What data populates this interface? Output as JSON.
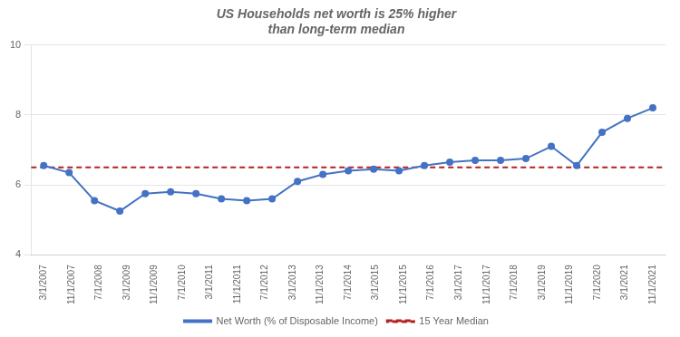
{
  "chart_data": {
    "type": "line",
    "title": [
      "US Households net worth is 25% higher",
      "than long-term median"
    ],
    "x": [
      0,
      1,
      2,
      3,
      4,
      5,
      6,
      7,
      8,
      9,
      10,
      11,
      12,
      13,
      14,
      15,
      16,
      17,
      18,
      19,
      20,
      21,
      22,
      23,
      24
    ],
    "series": [
      {
        "name": "Net Worth (% of Disposable Income)",
        "color": "#4472C4",
        "marker": "o",
        "line_style": "solid",
        "values": [
          6.55,
          6.35,
          5.55,
          5.25,
          5.75,
          5.8,
          5.75,
          5.6,
          5.55,
          5.6,
          6.1,
          6.3,
          6.4,
          6.45,
          6.4,
          6.55,
          6.65,
          6.7,
          6.7,
          6.75,
          7.1,
          6.55,
          7.5,
          7.9,
          8.2
        ]
      }
    ],
    "hlines": [
      {
        "name": "15 Year Median",
        "value": 6.5,
        "color": "#B22222",
        "line_style": "dashed"
      }
    ],
    "xlim": [
      -0.5,
      24.5
    ],
    "xticks": [
      {
        "value": 0,
        "label": "3/1/2007"
      },
      {
        "value": 1.090909090909,
        "label": "11/1/2007"
      },
      {
        "value": 2.181818181818,
        "label": "7/1/2008"
      },
      {
        "value": 3.272727272727,
        "label": "3/1/2009"
      },
      {
        "value": 4.363636363636,
        "label": "11/1/2009"
      },
      {
        "value": 5.454545454545,
        "label": "7/1/2010"
      },
      {
        "value": 6.545454545455,
        "label": "3/1/2011"
      },
      {
        "value": 7.636363636364,
        "label": "11/1/2011"
      },
      {
        "value": 8.727272727273,
        "label": "7/1/2012"
      },
      {
        "value": 9.818181818182,
        "label": "3/1/2013"
      },
      {
        "value": 10.909090909091,
        "label": "11/1/2013"
      },
      {
        "value": 12,
        "label": "7/1/2014"
      },
      {
        "value": 13.090909090909,
        "label": "3/1/2015"
      },
      {
        "value": 14.181818181818,
        "label": "11/1/2015"
      },
      {
        "value": 15.272727272727,
        "label": "7/1/2016"
      },
      {
        "value": 16.363636363636,
        "label": "3/1/2017"
      },
      {
        "value": 17.454545454545,
        "label": "11/1/2017"
      },
      {
        "value": 18.545454545455,
        "label": "7/1/2018"
      },
      {
        "value": 19.636363636364,
        "label": "3/1/2019"
      },
      {
        "value": 20.727272727273,
        "label": "11/1/2019"
      },
      {
        "value": 21.818181818182,
        "label": "7/1/2020"
      },
      {
        "value": 22.909090909091,
        "label": "3/1/2021"
      },
      {
        "value": 24,
        "label": "11/1/2021"
      }
    ],
    "ylim": [
      4,
      10
    ],
    "yticks": [
      4,
      6,
      8,
      10
    ],
    "grid": "y",
    "legend": "bottom"
  }
}
